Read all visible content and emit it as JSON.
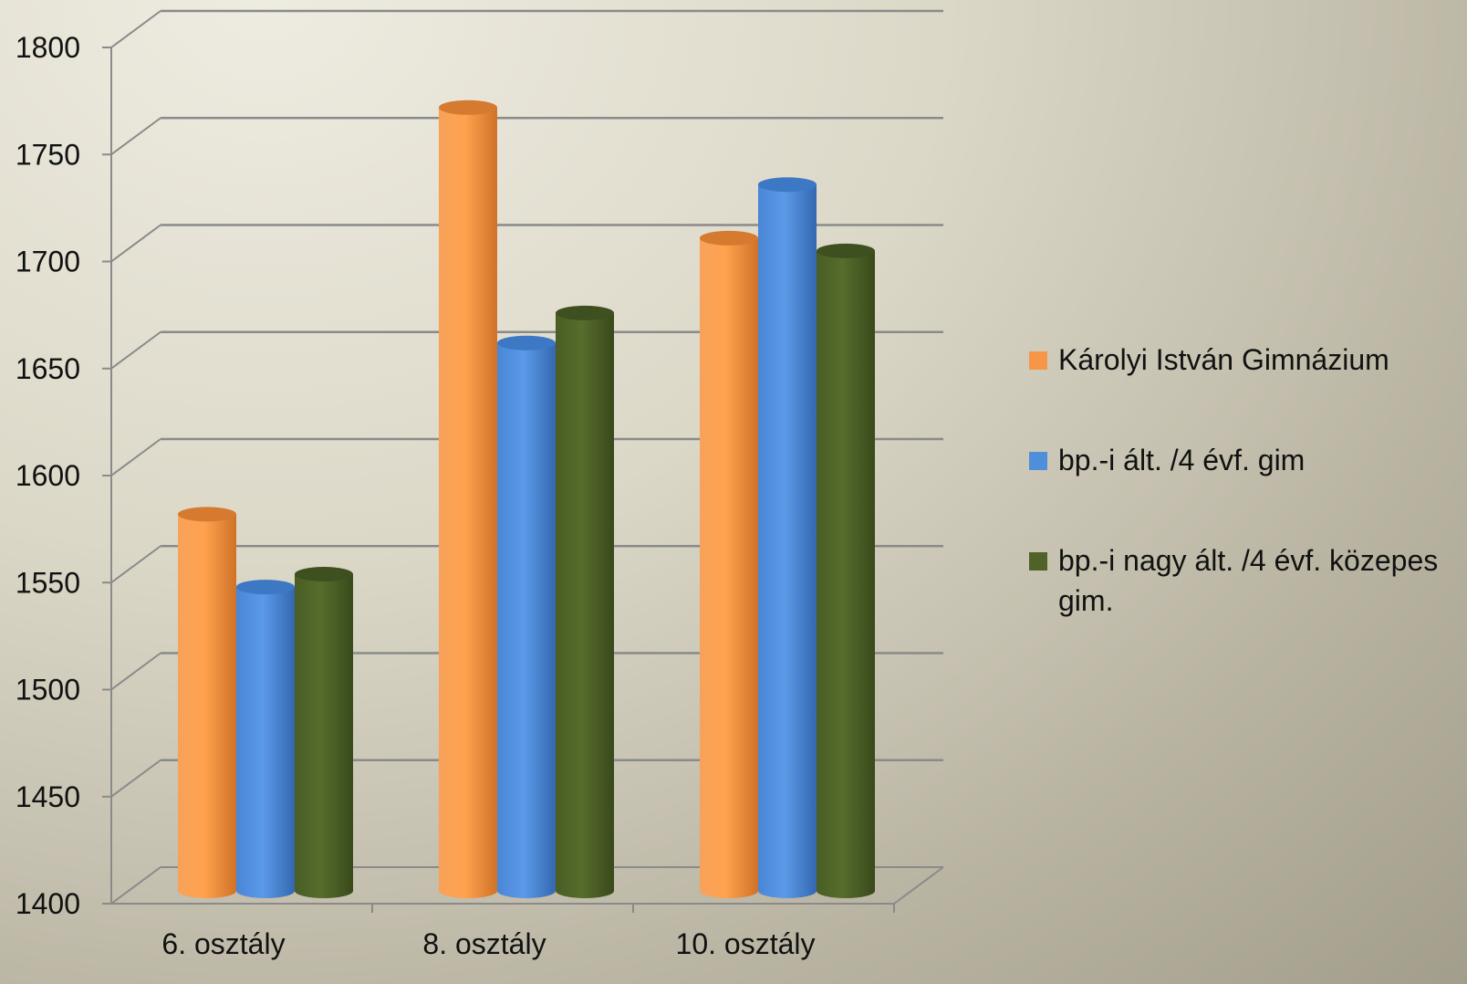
{
  "chart_data": {
    "type": "bar",
    "title": "",
    "xlabel": "",
    "ylabel": "",
    "categories": [
      "6. osztály",
      "8. osztály",
      "10. osztály"
    ],
    "series": [
      {
        "name": "Károlyi István Gimnázium",
        "color": "#f79646",
        "values": [
          1570,
          1760,
          1699
        ]
      },
      {
        "name": "bp.-i ált. /4 évf. gim",
        "color": "#4f8fd9",
        "values": [
          1536,
          1650,
          1724
        ]
      },
      {
        "name": "bp.-i nagy ált. /4 évf. közepes gim.",
        "color": "#4f6228",
        "values": [
          1542,
          1664,
          1693
        ]
      }
    ],
    "ylim": [
      1400,
      1800
    ],
    "yticks": [
      1400,
      1450,
      1500,
      1550,
      1600,
      1650,
      1700,
      1750,
      1800
    ],
    "grid": true,
    "legend_position": "right"
  }
}
